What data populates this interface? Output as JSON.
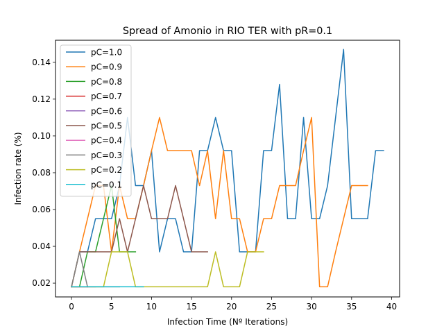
{
  "chart_data": {
    "type": "line",
    "title": "Spread of Amonio in RIO TER with pR=0.1",
    "xlabel": "Infection Time (Nº Iterations)",
    "ylabel": "Infection rate (%)",
    "xlim": [
      -2,
      41
    ],
    "ylim": [
      0.0125,
      0.152
    ],
    "xticks": [
      0,
      5,
      10,
      15,
      20,
      25,
      30,
      35,
      40
    ],
    "yticks": [
      0.02,
      0.04,
      0.06,
      0.08,
      0.1,
      0.12,
      0.14
    ],
    "ytick_labels": [
      "0.02",
      "0.04",
      "0.06",
      "0.08",
      "0.10",
      "0.12",
      "0.14"
    ],
    "legend_position": "top-left",
    "grid": false,
    "series": [
      {
        "name": "pC=1.0",
        "color": "#1f77b4",
        "x": [
          0,
          1,
          2,
          3,
          4,
          5,
          6,
          7,
          8,
          9,
          10,
          11,
          12,
          13,
          14,
          15,
          16,
          17,
          18,
          19,
          20,
          21,
          22,
          23,
          24,
          25,
          26,
          27,
          28,
          29,
          30,
          31,
          32,
          33,
          34,
          35,
          36,
          37,
          38,
          39
        ],
        "y": [
          0.018,
          0.037,
          0.037,
          0.055,
          0.055,
          0.055,
          0.073,
          0.11,
          0.073,
          0.073,
          0.092,
          0.037,
          0.055,
          0.055,
          0.037,
          0.037,
          0.092,
          0.092,
          0.11,
          0.092,
          0.092,
          0.037,
          0.037,
          0.037,
          0.092,
          0.092,
          0.128,
          0.055,
          0.055,
          0.11,
          0.055,
          0.055,
          0.073,
          0.11,
          0.147,
          0.055,
          0.055,
          0.055,
          0.092,
          0.092
        ]
      },
      {
        "name": "pC=0.9",
        "color": "#ff7f0e",
        "x": [
          0,
          1,
          2,
          3,
          4,
          5,
          6,
          7,
          8,
          9,
          10,
          11,
          12,
          13,
          14,
          15,
          16,
          17,
          18,
          19,
          20,
          21,
          22,
          23,
          24,
          25,
          26,
          27,
          28,
          29,
          30,
          31,
          32,
          33,
          34,
          35,
          36,
          37
        ],
        "y": [
          0.018,
          0.037,
          0.055,
          0.073,
          0.073,
          0.037,
          0.073,
          0.055,
          0.055,
          0.073,
          0.092,
          0.11,
          0.092,
          0.092,
          0.092,
          0.092,
          0.073,
          0.092,
          0.055,
          0.092,
          0.055,
          0.055,
          0.037,
          0.037,
          0.055,
          0.055,
          0.073,
          0.073,
          0.073,
          0.092,
          0.11,
          0.018,
          0.018,
          0.037,
          0.055,
          0.073,
          0.073,
          0.073
        ]
      },
      {
        "name": "pC=0.8",
        "color": "#2ca02c",
        "x": [
          0,
          1,
          2,
          3,
          4,
          5,
          6,
          7,
          8
        ],
        "y": [
          0.018,
          0.018,
          0.037,
          0.037,
          0.055,
          0.073,
          0.037,
          0.037,
          0.037
        ]
      },
      {
        "name": "pC=0.7",
        "color": "#d62728",
        "x": [
          0,
          1,
          2
        ],
        "y": [
          0.018,
          0.018,
          0.018
        ]
      },
      {
        "name": "pC=0.6",
        "color": "#9467bd",
        "x": [
          0,
          1,
          2
        ],
        "y": [
          0.018,
          0.018,
          0.018
        ]
      },
      {
        "name": "pC=0.5",
        "color": "#8c564b",
        "x": [
          0,
          1,
          2,
          3,
          4,
          5,
          6,
          7,
          8,
          9,
          10,
          11,
          12,
          13,
          14,
          15,
          16,
          17
        ],
        "y": [
          0.018,
          0.037,
          0.037,
          0.037,
          0.037,
          0.037,
          0.055,
          0.037,
          0.055,
          0.073,
          0.055,
          0.055,
          0.055,
          0.073,
          0.055,
          0.037,
          0.037,
          0.037
        ]
      },
      {
        "name": "pC=0.4",
        "color": "#e377c2",
        "x": [
          0,
          1,
          2,
          3
        ],
        "y": [
          0.018,
          0.018,
          0.018,
          0.018
        ]
      },
      {
        "name": "pC=0.3",
        "color": "#7f7f7f",
        "x": [
          0,
          1,
          2,
          3,
          4,
          5,
          6
        ],
        "y": [
          0.018,
          0.037,
          0.018,
          0.018,
          0.018,
          0.018,
          0.018
        ]
      },
      {
        "name": "pC=0.2",
        "color": "#bcbd22",
        "x": [
          0,
          1,
          2,
          3,
          4,
          5,
          6,
          7,
          8,
          9,
          10,
          11,
          12,
          13,
          14,
          15,
          16,
          17,
          18,
          19,
          20,
          21,
          22,
          23,
          24
        ],
        "y": [
          0.018,
          0.018,
          0.018,
          0.018,
          0.018,
          0.037,
          0.037,
          0.037,
          0.018,
          0.018,
          0.018,
          0.018,
          0.018,
          0.018,
          0.018,
          0.018,
          0.018,
          0.018,
          0.037,
          0.018,
          0.018,
          0.018,
          0.037,
          0.037,
          0.037
        ]
      },
      {
        "name": "pC=0.1",
        "color": "#17becf",
        "x": [
          0,
          1,
          2,
          3,
          4,
          5,
          6,
          7,
          8,
          9
        ],
        "y": [
          0.018,
          0.018,
          0.018,
          0.018,
          0.018,
          0.018,
          0.018,
          0.018,
          0.018,
          0.018
        ]
      }
    ]
  }
}
